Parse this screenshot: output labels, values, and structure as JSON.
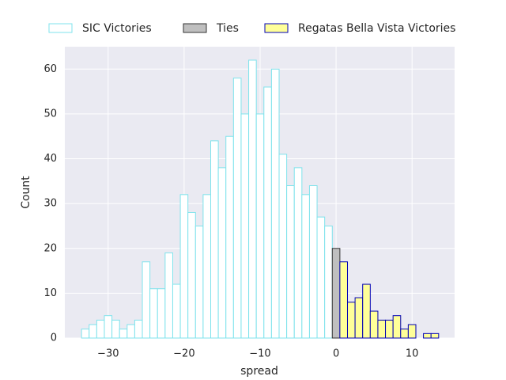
{
  "chart_data": {
    "type": "histogram",
    "xlabel": "spread",
    "ylabel": "Count",
    "series": [
      {
        "name": "SIC Victories",
        "color": "#ffffff",
        "edgecolor": "#7fe3ec",
        "bins": [
          -33.5,
          -32.5,
          -31.5,
          -30.5,
          -29.5,
          -28.5,
          -27.5,
          -26.5,
          -25.5,
          -24.5,
          -23.5,
          -22.5,
          -21.5,
          -20.5,
          -19.5,
          -18.5,
          -17.5,
          -16.5,
          -15.5,
          -14.5,
          -13.5,
          -12.5,
          -11.5,
          -10.5,
          -9.5,
          -8.5,
          -7.5,
          -6.5,
          -5.5,
          -4.5,
          -3.5,
          -2.5,
          -1.5,
          -0.5
        ],
        "values": [
          2,
          3,
          4,
          5,
          4,
          2,
          3,
          4,
          17,
          11,
          11,
          19,
          12,
          32,
          28,
          25,
          32,
          44,
          38,
          45,
          58,
          50,
          62,
          50,
          56,
          60,
          41,
          34,
          38,
          32,
          34,
          27,
          25
        ]
      },
      {
        "name": "Ties",
        "color": "#bfbfbf",
        "edgecolor": "#333333",
        "bins": [
          -0.5,
          0.5
        ],
        "values": [
          20
        ]
      },
      {
        "name": "Regatas Bella Vista Victories",
        "color": "#ffff99",
        "edgecolor": "#0000b4",
        "bins": [
          0.5,
          1.5,
          2.5,
          3.5,
          4.5,
          5.5,
          6.5,
          7.5,
          8.5,
          9.5,
          10.5,
          11.5,
          12.5,
          13.5
        ],
        "values": [
          17,
          8,
          9,
          12,
          6,
          4,
          4,
          5,
          2,
          3,
          0,
          1,
          1
        ]
      }
    ],
    "xlim": [
      -35.7,
      15.6
    ],
    "xticks": [
      {
        "value": -30,
        "label": "−30"
      },
      {
        "value": -20,
        "label": "−20"
      },
      {
        "value": -10,
        "label": "−10"
      },
      0,
      10
    ],
    "ylim": [
      0,
      65
    ],
    "yticks": [
      0,
      10,
      20,
      30,
      40,
      50,
      60
    ],
    "grid": true,
    "legend": "top"
  }
}
